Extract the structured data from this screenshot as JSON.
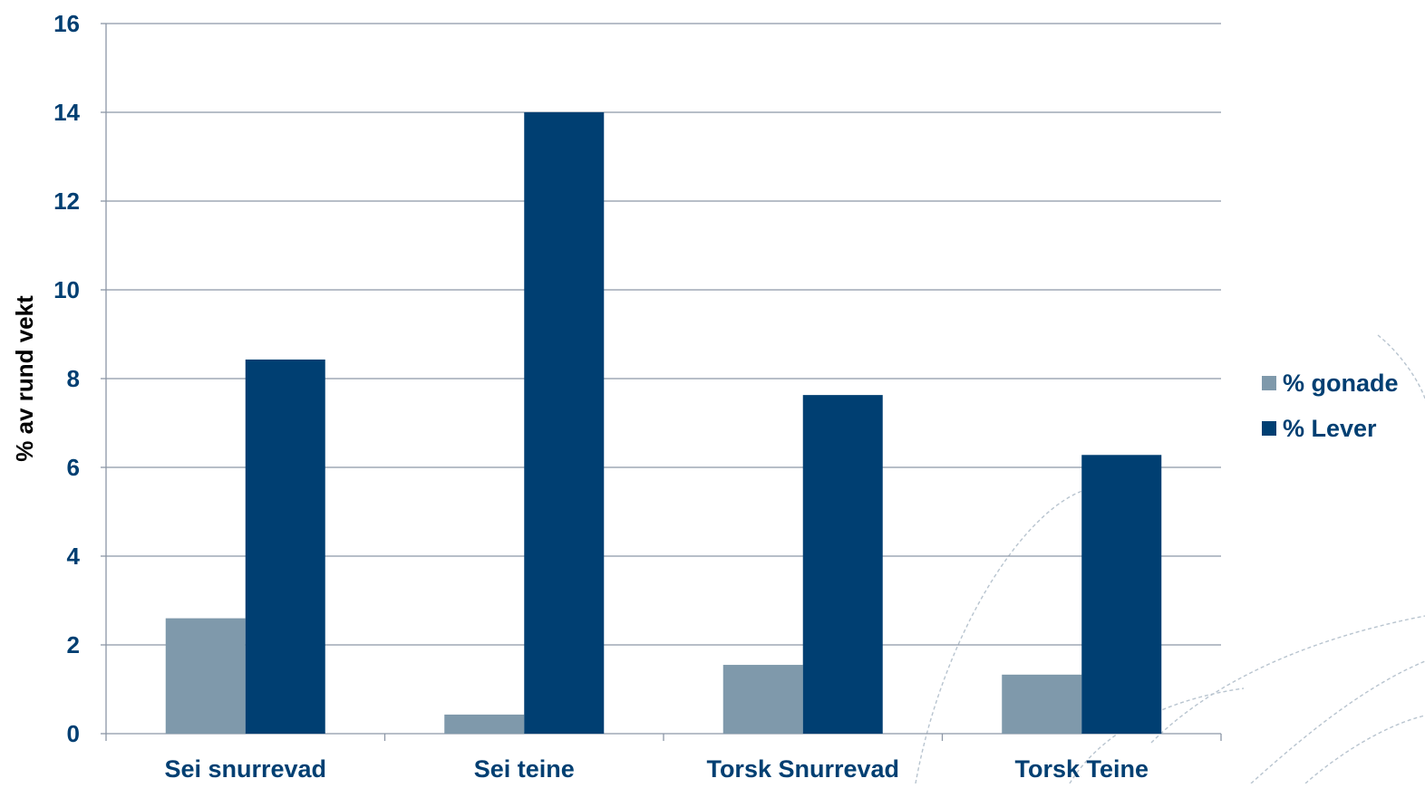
{
  "colors": {
    "gonade": "#7F99AB",
    "lever": "#003F72",
    "text": "#003F72",
    "grid": "#8C96A6",
    "decor": "#B8C4CF"
  },
  "chart_data": {
    "type": "bar",
    "ylabel": "% av rund vekt",
    "xlabel": "",
    "ylim": [
      0,
      16
    ],
    "yticks": [
      0,
      2,
      4,
      6,
      8,
      10,
      12,
      14,
      16
    ],
    "grid": true,
    "legend_position": "right",
    "categories": [
      "Sei snurrevad",
      "Sei teine",
      "Torsk Snurrevad",
      "Torsk Teine"
    ],
    "series": [
      {
        "name": "% gonade",
        "color": "#7F99AB",
        "values": [
          2.6,
          0.43,
          1.55,
          1.33
        ]
      },
      {
        "name": "% Lever",
        "color": "#003F72",
        "values": [
          8.43,
          14.0,
          7.63,
          6.28
        ]
      }
    ]
  }
}
